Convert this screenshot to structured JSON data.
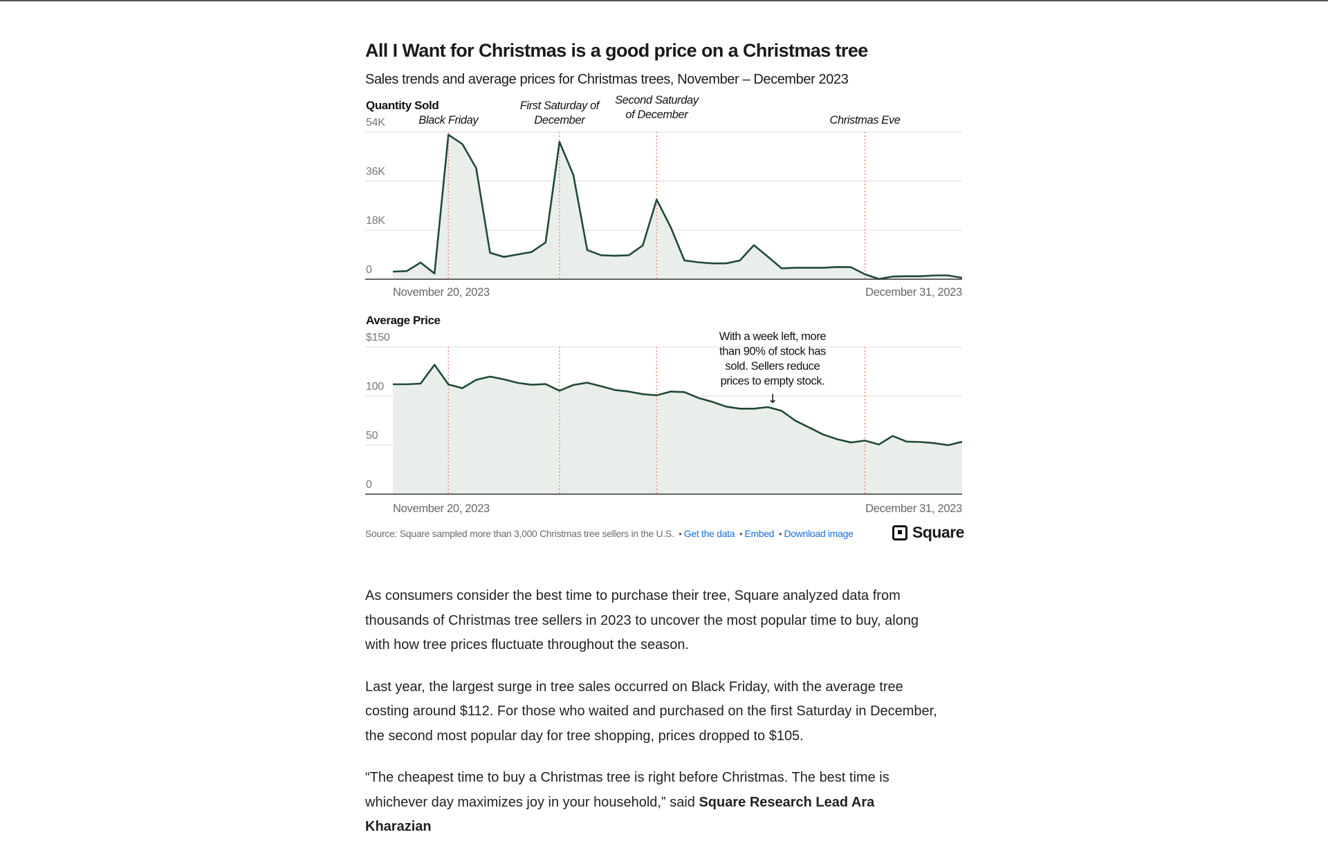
{
  "header": {
    "title": "All I Want for Christmas is a good price on a Christmas tree",
    "subtitle": "Sales trends and average prices for Christmas trees, November – December 2023"
  },
  "colors": {
    "line": "#1f4a35",
    "fill": "#e9eeeb",
    "event": "#f0907a",
    "grid": "#e2e2e2",
    "axis": "#333333",
    "link": "#1a6fd6"
  },
  "chart_data": [
    {
      "type": "area",
      "title": "Quantity Sold",
      "x_start": "November 20, 2023",
      "x_end": "December 31, 2023",
      "x_tick_labels": [
        "November 20, 2023",
        "December 31, 2023"
      ],
      "y_ticks": [
        0,
        18000,
        36000,
        54000
      ],
      "y_tick_labels": [
        "0",
        "18K",
        "36K",
        "54K"
      ],
      "ylim": [
        0,
        54000
      ],
      "grid": true,
      "values": [
        2800,
        3000,
        6100,
        2100,
        53000,
        49600,
        40800,
        9700,
        8200,
        9100,
        10000,
        13500,
        50400,
        38200,
        10700,
        8800,
        8600,
        8800,
        12400,
        29200,
        19200,
        6900,
        6200,
        5800,
        5800,
        6900,
        12500,
        8300,
        4000,
        4200,
        4200,
        4200,
        4500,
        4400,
        1800,
        100,
        1000,
        1100,
        1100,
        1400,
        1400,
        500
      ],
      "events": [
        {
          "day_index": 4,
          "label": [
            "Black Friday"
          ]
        },
        {
          "day_index": 12,
          "label": [
            "First Saturday of",
            "December"
          ]
        },
        {
          "day_index": 19,
          "label": [
            "Second Saturday",
            "of December"
          ]
        },
        {
          "day_index": 34,
          "label": [
            "Christmas Eve"
          ]
        }
      ]
    },
    {
      "type": "area",
      "title": "Average Price",
      "x_start": "November 20, 2023",
      "x_end": "December 31, 2023",
      "x_tick_labels": [
        "November 20, 2023",
        "December 31, 2023"
      ],
      "y_ticks": [
        0,
        50,
        100,
        150
      ],
      "y_tick_labels": [
        "0",
        "50",
        "100",
        "$150"
      ],
      "ylim": [
        0,
        150
      ],
      "grid": true,
      "values": [
        112,
        112,
        112.7,
        131.8,
        111.8,
        108,
        116.5,
        119.8,
        117,
        113.4,
        111.5,
        112.2,
        105.4,
        111.3,
        113.6,
        109.9,
        106.1,
        104.5,
        101.9,
        100.7,
        104.5,
        104,
        98.1,
        94.1,
        89.2,
        87.1,
        87.1,
        88.7,
        84.9,
        74.8,
        67.8,
        60.7,
        56,
        52.7,
        54.6,
        50.6,
        59.3,
        53.6,
        53.2,
        52,
        49.9,
        53.4
      ],
      "event_day_indices": [
        4,
        12,
        19,
        34
      ],
      "annotation": {
        "day_index": 27,
        "lines": [
          "With a week left, more",
          "than 90% of stock has",
          "sold. Sellers reduce",
          "prices to empty stock."
        ],
        "arrow": "↓"
      }
    }
  ],
  "footer": {
    "source": "Source: Square sampled more than 3,000 Christmas tree sellers in the U.S.",
    "sep": "•",
    "links": [
      "Get the data",
      "Embed",
      "Download image"
    ],
    "brand": "Square"
  },
  "article": {
    "p1": "As consumers consider the best time to purchase their tree, Square analyzed data from thousands of Christmas tree sellers in 2023 to uncover the most popular time to buy, along with how tree prices fluctuate throughout the season.",
    "p2": "Last year, the largest surge in tree sales occurred on Black Friday, with the average tree costing around $112. For those who waited and purchased on the first Saturday in December, the second most popular day for tree shopping, prices dropped to $105.",
    "p3_text": "“The cheapest time to buy a Christmas tree is right before Christmas. The best time is whichever day maximizes joy in your household,” said ",
    "p3_bold": "Square Research Lead Ara Kharazian"
  }
}
